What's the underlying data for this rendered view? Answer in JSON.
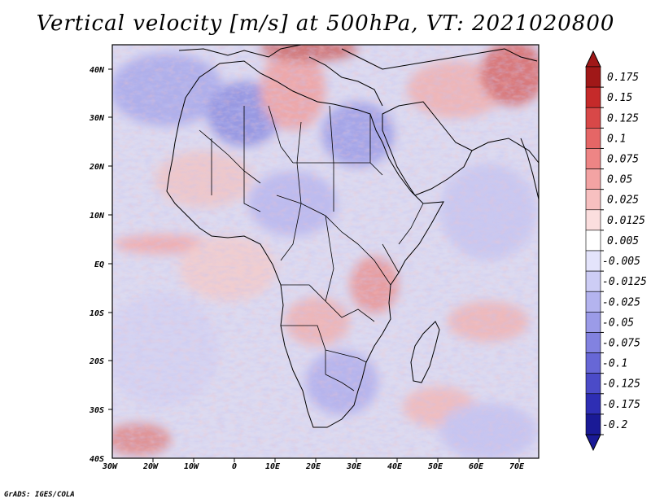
{
  "title": "Vertical velocity [m/s] at 500hPa, VT: 2021020800",
  "credit": "GrADS: IGES/COLA",
  "map": {
    "lon_range": [
      -30,
      75
    ],
    "lat_range": [
      -40,
      45
    ],
    "lon_ticks": [
      "30W",
      "20W",
      "10W",
      "0",
      "10E",
      "20E",
      "30E",
      "40E",
      "50E",
      "60E",
      "70E"
    ],
    "lat_ticks": [
      "40N",
      "30N",
      "20N",
      "10N",
      "EQ",
      "10S",
      "20S",
      "30S",
      "40S"
    ]
  },
  "colorbar": {
    "labels": [
      "0.175",
      "0.15",
      "0.125",
      "0.1",
      "0.075",
      "0.05",
      "0.025",
      "0.0125",
      "0.005",
      "-0.005",
      "-0.0125",
      "-0.025",
      "-0.05",
      "-0.075",
      "-0.1",
      "-0.125",
      "-0.175",
      "-0.2"
    ],
    "colors": [
      "#a01818",
      "#c52a2a",
      "#d84848",
      "#e56666",
      "#ee8585",
      "#f3a3a3",
      "#f7c0c0",
      "#fbdede",
      "#ffffff",
      "#e4e4fb",
      "#cdcdf5",
      "#b4b4ef",
      "#9b9be8",
      "#8282e0",
      "#6767d6",
      "#4b4bc8",
      "#2e2eb4",
      "#1a1a96"
    ]
  },
  "legend_colors": {
    "background_mid": "#d8d6ee",
    "sink": "#8a8ae0",
    "rise": "#f0a8a8"
  }
}
